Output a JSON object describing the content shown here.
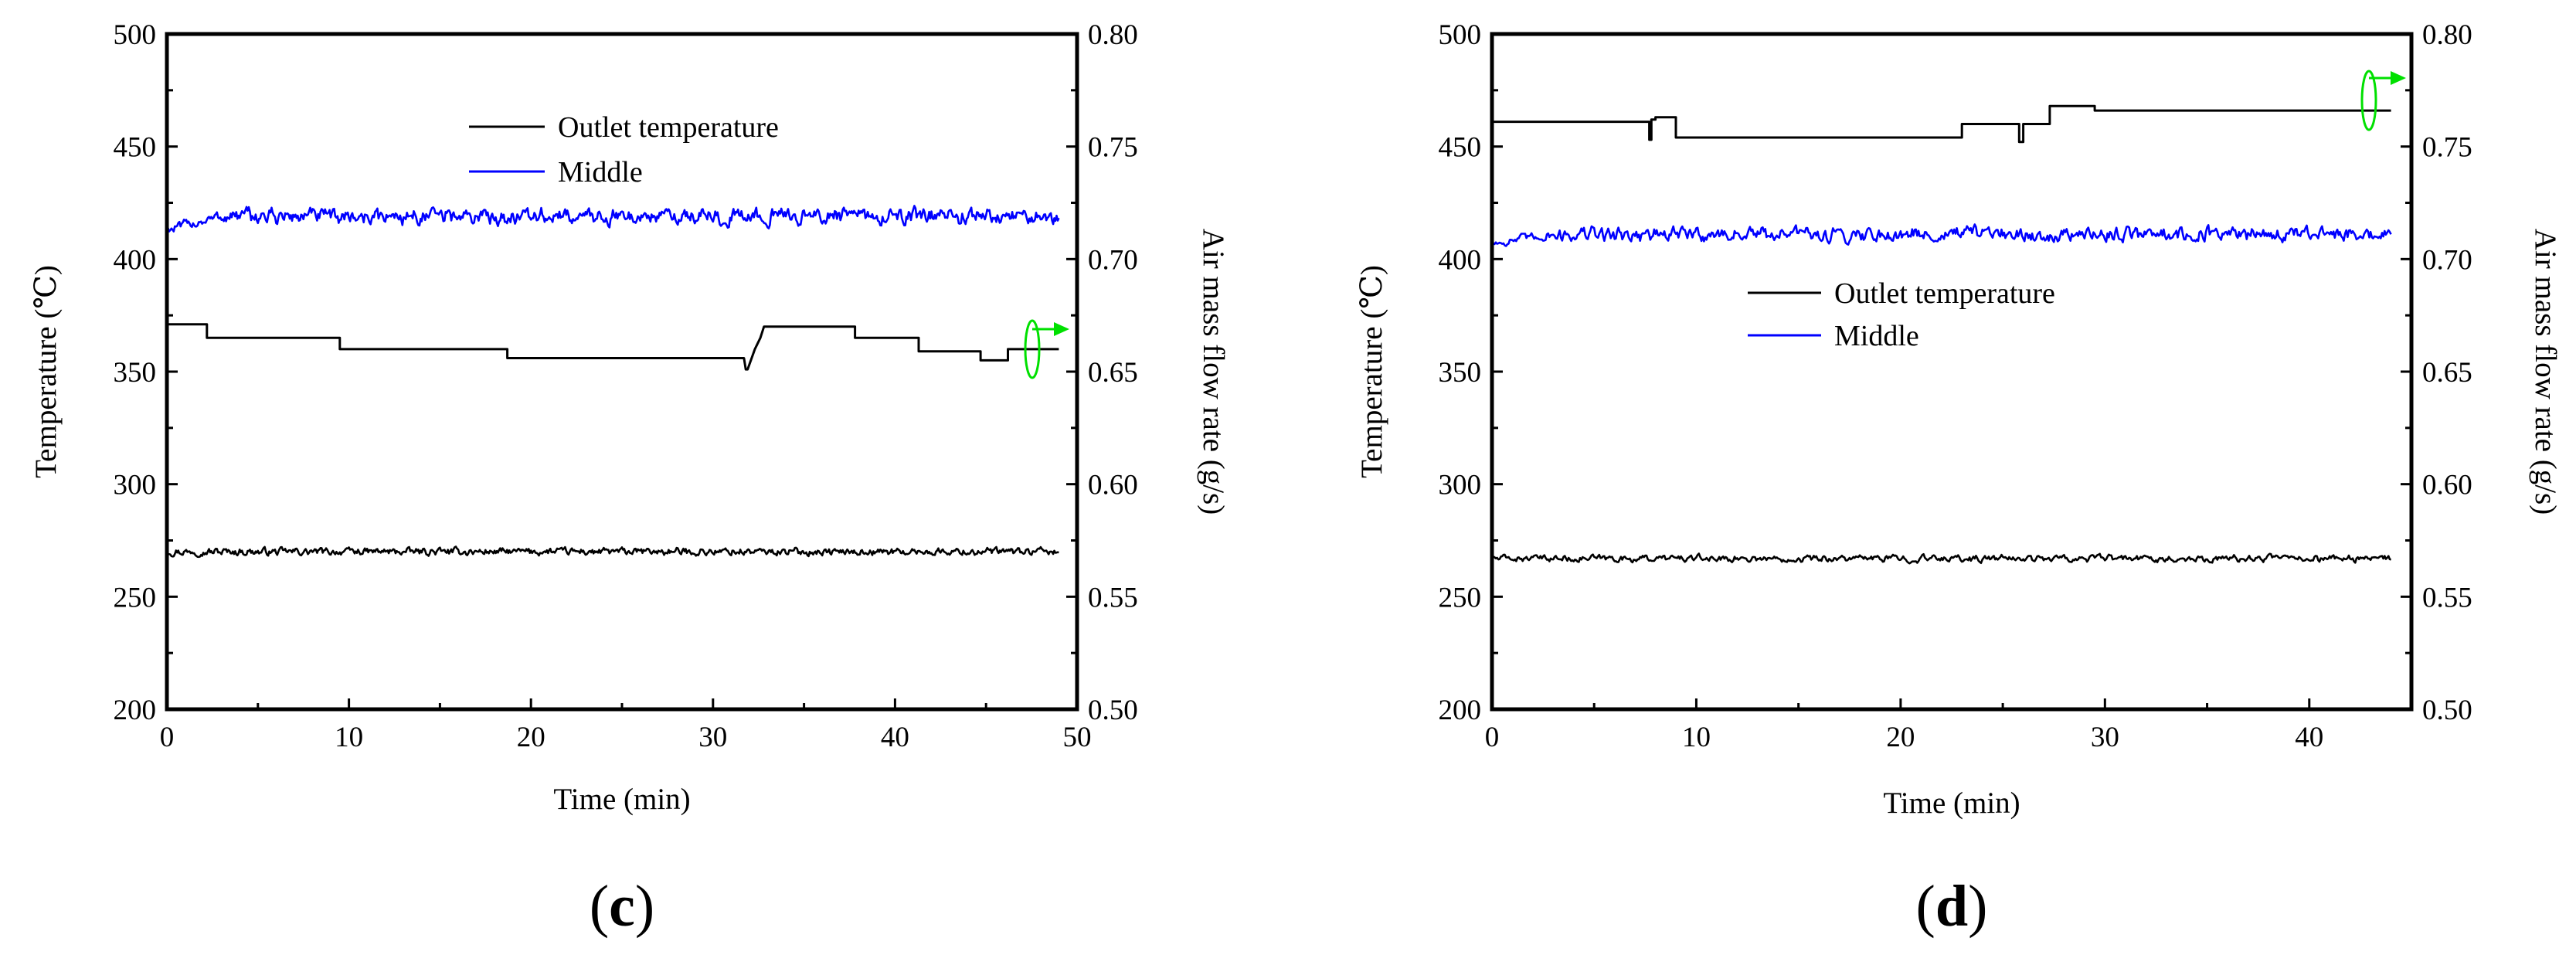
{
  "figure": {
    "colors": {
      "outlet": "#000000",
      "middle": "#0000ff",
      "airflow": "#000000",
      "arrow": "#00e000"
    }
  },
  "chart_data": [
    {
      "type": "line",
      "panel_label": "(c)",
      "panel_label_parts": {
        "open": "(",
        "letter": "c",
        "close": ")"
      },
      "xlabel": "Time (min)",
      "ylabel": "Temperature (℃)",
      "y2label": "Air mass flow rate (g/s)",
      "xlim": [
        0,
        50
      ],
      "ylim": [
        200,
        500
      ],
      "y2lim": [
        0.5,
        0.8
      ],
      "xticks": [
        "0",
        "10",
        "20",
        "30",
        "40",
        "50"
      ],
      "yticks": [
        "200",
        "250",
        "300",
        "350",
        "400",
        "450",
        "500"
      ],
      "y2ticks": [
        "0.50",
        "0.55",
        "0.60",
        "0.65",
        "0.70",
        "0.75",
        "0.80"
      ],
      "legend": {
        "placement": "top-center",
        "entries": [
          "Outlet temperature",
          "Middle"
        ]
      },
      "series": [
        {
          "name": "Outlet temperature",
          "axis": "left",
          "color": "#000000",
          "mean": 270,
          "noise": 1.2,
          "x_end": 49
        },
        {
          "name": "Middle",
          "axis": "left",
          "color": "#0000ff",
          "mean": 419,
          "noise": 2.6,
          "x_end": 49,
          "start": 413
        },
        {
          "axis": "right",
          "color": "#000000",
          "style": "step",
          "x": [
            0,
            2.2,
            2.2,
            9.5,
            9.5,
            18.7,
            18.7,
            31.7,
            31.8,
            31.9,
            32.3,
            32.6,
            32.8,
            37.8,
            37.8,
            41.3,
            41.3,
            44.7,
            44.7,
            46.2,
            46.2,
            49
          ],
          "y": [
            0.671,
            0.671,
            0.665,
            0.665,
            0.66,
            0.66,
            0.656,
            0.656,
            0.651,
            0.651,
            0.66,
            0.665,
            0.67,
            0.67,
            0.665,
            0.665,
            0.659,
            0.659,
            0.655,
            0.655,
            0.66,
            0.66
          ]
        }
      ],
      "annotation": {
        "type": "ellipse-arrow",
        "points_to": "right-axis"
      }
    },
    {
      "type": "line",
      "panel_label": "(d)",
      "panel_label_parts": {
        "open": "(",
        "letter": "d",
        "close": ")"
      },
      "xlabel": "Time (min)",
      "ylabel": "Temperature (℃)",
      "y2label": "Air mass flow rate (g/s)",
      "xlim": [
        0,
        45
      ],
      "ylim": [
        200,
        500
      ],
      "y2lim": [
        0.5,
        0.8
      ],
      "xticks": [
        "0",
        "10",
        "20",
        "30",
        "40"
      ],
      "yticks": [
        "200",
        "250",
        "300",
        "350",
        "400",
        "450",
        "500"
      ],
      "y2ticks": [
        "0.50",
        "0.55",
        "0.60",
        "0.65",
        "0.70",
        "0.75",
        "0.80"
      ],
      "legend": {
        "placement": "center-left",
        "entries": [
          "Outlet temperature",
          "Middle"
        ]
      },
      "series": [
        {
          "name": "Outlet temperature",
          "axis": "left",
          "color": "#000000",
          "mean": 267,
          "noise": 1.1,
          "x_end": 44
        },
        {
          "name": "Middle",
          "axis": "left",
          "color": "#0000ff",
          "mean": 411,
          "noise": 2.4,
          "x_end": 44,
          "start": 407
        },
        {
          "axis": "right",
          "color": "#000000",
          "style": "step",
          "x": [
            0,
            7.7,
            7.7,
            7.8,
            7.8,
            8.0,
            8.0,
            9.0,
            9.0,
            23.0,
            23.0,
            25.8,
            25.8,
            26.0,
            26.0,
            27.3,
            27.3,
            29.5,
            29.5,
            44
          ],
          "y": [
            0.761,
            0.761,
            0.753,
            0.753,
            0.762,
            0.762,
            0.763,
            0.763,
            0.754,
            0.754,
            0.76,
            0.76,
            0.752,
            0.752,
            0.76,
            0.76,
            0.768,
            0.768,
            0.766,
            0.766
          ]
        }
      ],
      "annotation": {
        "type": "ellipse-arrow",
        "points_to": "right-axis"
      }
    }
  ]
}
